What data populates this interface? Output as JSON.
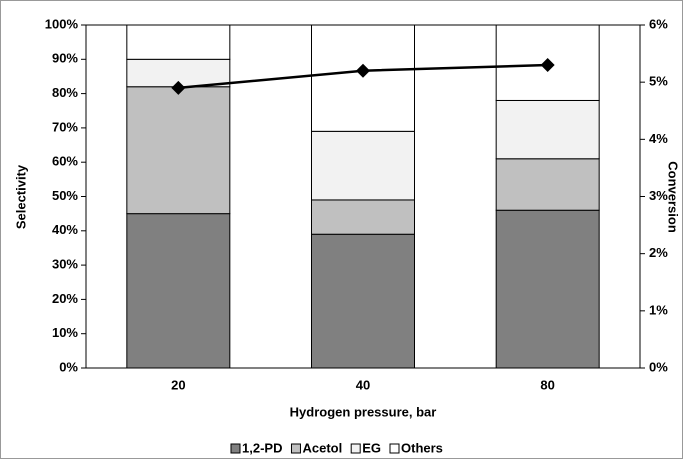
{
  "chart_data": {
    "type": "stacked_bar_line",
    "x_label": "Hydrogen pressure, bar",
    "y_label": "Selectivity",
    "y2_label": "Conversion",
    "categories": [
      "20",
      "40",
      "80"
    ],
    "series": [
      {
        "name": "1,2-PD",
        "color": "#808080",
        "values": [
          45,
          39,
          46
        ]
      },
      {
        "name": "Acetol",
        "color": "#c0c0c0",
        "values": [
          37,
          10,
          15
        ]
      },
      {
        "name": "EG",
        "color": "#f2f2f2",
        "values": [
          8,
          20,
          17
        ]
      },
      {
        "name": "Others",
        "color": "#ffffff",
        "values": [
          10,
          31,
          22
        ]
      },
      {
        "type": "line",
        "axis": "y2",
        "color": "#000000",
        "values": [
          4.9,
          5.2,
          5.3
        ]
      }
    ],
    "ylim": [
      0,
      100
    ],
    "yticks": [
      {
        "value": 0,
        "label": "0%"
      },
      {
        "value": 10,
        "label": "10%"
      },
      {
        "value": 20,
        "label": "20%"
      },
      {
        "value": 30,
        "label": "30%"
      },
      {
        "value": 40,
        "label": "40%"
      },
      {
        "value": 50,
        "label": "50%"
      },
      {
        "value": 60,
        "label": "60%"
      },
      {
        "value": 70,
        "label": "70%"
      },
      {
        "value": 80,
        "label": "80%"
      },
      {
        "value": 90,
        "label": "90%"
      },
      {
        "value": 100,
        "label": "100%"
      }
    ],
    "y2lim": [
      0,
      6
    ],
    "y2ticks": [
      {
        "value": 0,
        "label": "0%"
      },
      {
        "value": 1,
        "label": "1%"
      },
      {
        "value": 2,
        "label": "2%"
      },
      {
        "value": 3,
        "label": "3%"
      },
      {
        "value": 4,
        "label": "4%"
      },
      {
        "value": 5,
        "label": "5%"
      },
      {
        "value": 6,
        "label": "6%"
      }
    ],
    "legend": "bottom"
  }
}
